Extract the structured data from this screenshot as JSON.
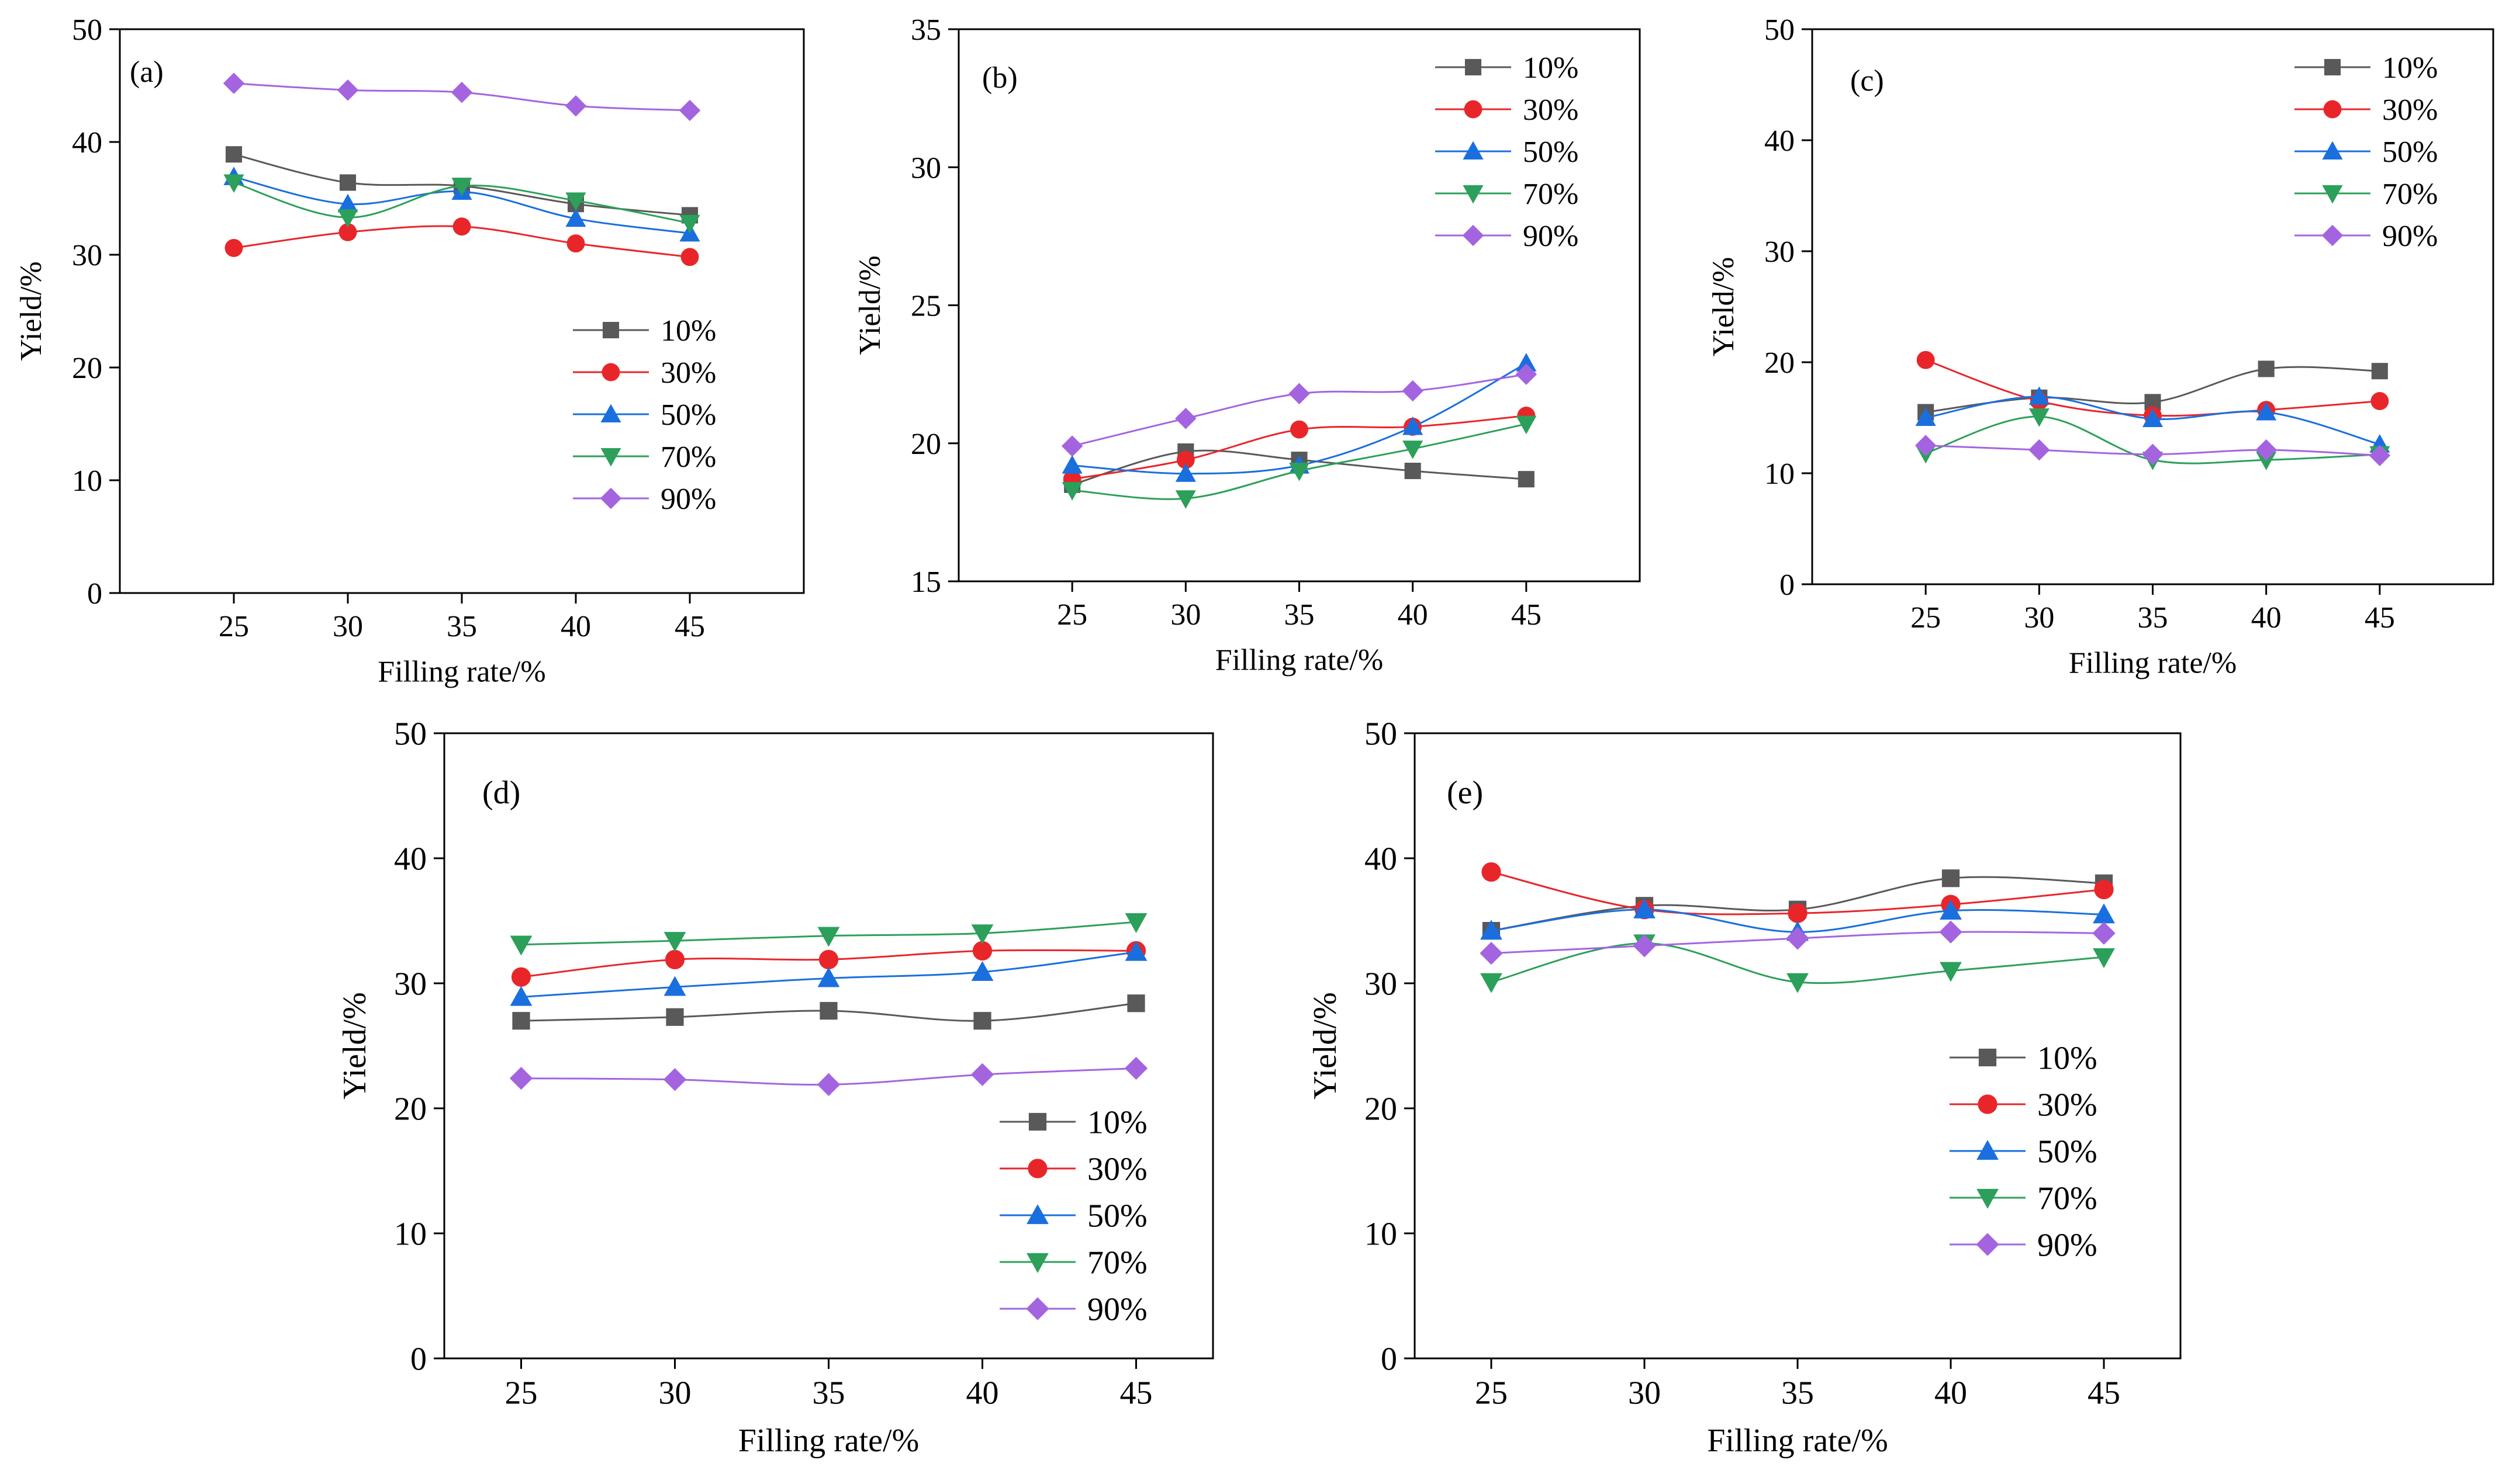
{
  "colors": {
    "10%": "#595959",
    "30%": "#e8262a",
    "50%": "#1a6fdf",
    "70%": "#2ca05a",
    "90%": "#a464e0"
  },
  "chart_data": [
    {
      "type": "line",
      "panel_label": "(a)",
      "xlabel": "Filling rate/%",
      "ylabel": "Yield/%",
      "x": [
        25,
        30,
        35,
        40,
        45
      ],
      "xlim": [
        20,
        50
      ],
      "ylim": [
        0,
        50
      ],
      "yticks": [
        0,
        10,
        20,
        30,
        40,
        50
      ],
      "legend_position": "middle-right",
      "series": [
        {
          "name": "10%",
          "marker": "square",
          "values": [
            38.9,
            36.4,
            36.1,
            34.5,
            33.5
          ]
        },
        {
          "name": "30%",
          "marker": "circle",
          "values": [
            30.6,
            32.0,
            32.5,
            31.0,
            29.8
          ]
        },
        {
          "name": "50%",
          "marker": "triangle-up",
          "values": [
            36.9,
            34.5,
            35.6,
            33.2,
            31.9
          ]
        },
        {
          "name": "70%",
          "marker": "triangle-down",
          "values": [
            36.4,
            33.3,
            36.1,
            34.8,
            32.8
          ]
        },
        {
          "name": "90%",
          "marker": "diamond",
          "values": [
            45.2,
            44.6,
            44.4,
            43.2,
            42.8
          ]
        }
      ]
    },
    {
      "type": "line",
      "panel_label": "(b)",
      "xlabel": "Filling rate/%",
      "ylabel": "Yield/%",
      "x": [
        25,
        30,
        35,
        40,
        45
      ],
      "xlim": [
        20,
        50
      ],
      "ylim": [
        15,
        35
      ],
      "yticks": [
        15,
        20,
        25,
        30,
        35
      ],
      "legend_position": "top-right",
      "series": [
        {
          "name": "10%",
          "marker": "square",
          "values": [
            18.5,
            19.7,
            19.4,
            19.0,
            18.7
          ]
        },
        {
          "name": "30%",
          "marker": "circle",
          "values": [
            18.7,
            19.4,
            20.5,
            20.6,
            21.0
          ]
        },
        {
          "name": "50%",
          "marker": "triangle-up",
          "values": [
            19.2,
            18.9,
            19.2,
            20.6,
            22.9
          ]
        },
        {
          "name": "70%",
          "marker": "triangle-down",
          "values": [
            18.3,
            18.0,
            19.0,
            19.8,
            20.7
          ]
        },
        {
          "name": "90%",
          "marker": "diamond",
          "values": [
            19.9,
            20.9,
            21.8,
            21.9,
            22.5
          ]
        }
      ]
    },
    {
      "type": "line",
      "panel_label": "(c)",
      "xlabel": "Filling rate/%",
      "ylabel": "Yield/%",
      "x": [
        25,
        30,
        35,
        40,
        45
      ],
      "xlim": [
        20,
        50
      ],
      "ylim": [
        0,
        50
      ],
      "yticks": [
        0,
        10,
        20,
        30,
        40,
        50
      ],
      "legend_position": "top-right",
      "series": [
        {
          "name": "10%",
          "marker": "square",
          "values": [
            15.5,
            16.8,
            16.4,
            19.4,
            19.2
          ]
        },
        {
          "name": "30%",
          "marker": "circle",
          "values": [
            20.2,
            16.5,
            15.2,
            15.7,
            16.5
          ]
        },
        {
          "name": "50%",
          "marker": "triangle-up",
          "values": [
            15.0,
            16.9,
            14.9,
            15.5,
            12.6
          ]
        },
        {
          "name": "70%",
          "marker": "triangle-down",
          "values": [
            11.8,
            15.1,
            11.2,
            11.2,
            11.7
          ]
        },
        {
          "name": "90%",
          "marker": "diamond",
          "values": [
            12.5,
            12.1,
            11.7,
            12.1,
            11.6
          ]
        }
      ]
    },
    {
      "type": "line",
      "panel_label": "(d)",
      "xlabel": "Filling rate/%",
      "ylabel": "Yield/%",
      "x": [
        25,
        30,
        35,
        40,
        45
      ],
      "xlim": [
        22.5,
        47.5
      ],
      "ylim": [
        0,
        50
      ],
      "yticks": [
        0,
        10,
        20,
        30,
        40,
        50
      ],
      "legend_position": "bottom-right",
      "series": [
        {
          "name": "10%",
          "marker": "square",
          "values": [
            27.0,
            27.3,
            27.8,
            27.0,
            28.4
          ]
        },
        {
          "name": "30%",
          "marker": "circle",
          "values": [
            30.5,
            31.9,
            31.9,
            32.6,
            32.6
          ]
        },
        {
          "name": "50%",
          "marker": "triangle-up",
          "values": [
            28.9,
            29.7,
            30.4,
            30.9,
            32.5
          ]
        },
        {
          "name": "70%",
          "marker": "triangle-down",
          "values": [
            33.1,
            33.4,
            33.8,
            34.0,
            34.9
          ]
        },
        {
          "name": "90%",
          "marker": "diamond",
          "values": [
            22.4,
            22.3,
            21.9,
            22.7,
            23.2
          ]
        }
      ]
    },
    {
      "type": "line",
      "panel_label": "(e)",
      "xlabel": "Filling rate/%",
      "ylabel": "Yield/%",
      "x": [
        25,
        30,
        35,
        40,
        45
      ],
      "xlim": [
        22.5,
        47.5
      ],
      "ylim": [
        0,
        50
      ],
      "yticks": [
        0,
        10,
        20,
        30,
        40,
        50
      ],
      "legend_position": "bottom-right",
      "series": [
        {
          "name": "10%",
          "marker": "square",
          "values": [
            34.2,
            36.2,
            35.9,
            38.4,
            38.0
          ]
        },
        {
          "name": "30%",
          "marker": "circle",
          "values": [
            38.9,
            35.9,
            35.6,
            36.3,
            37.5
          ]
        },
        {
          "name": "50%",
          "marker": "triangle-up",
          "values": [
            34.2,
            35.9,
            34.1,
            35.8,
            35.5
          ]
        },
        {
          "name": "70%",
          "marker": "triangle-down",
          "values": [
            30.1,
            33.2,
            30.1,
            31.0,
            32.1
          ]
        },
        {
          "name": "90%",
          "marker": "diamond",
          "values": [
            32.4,
            33.0,
            33.6,
            34.1,
            34.0
          ]
        }
      ]
    }
  ]
}
